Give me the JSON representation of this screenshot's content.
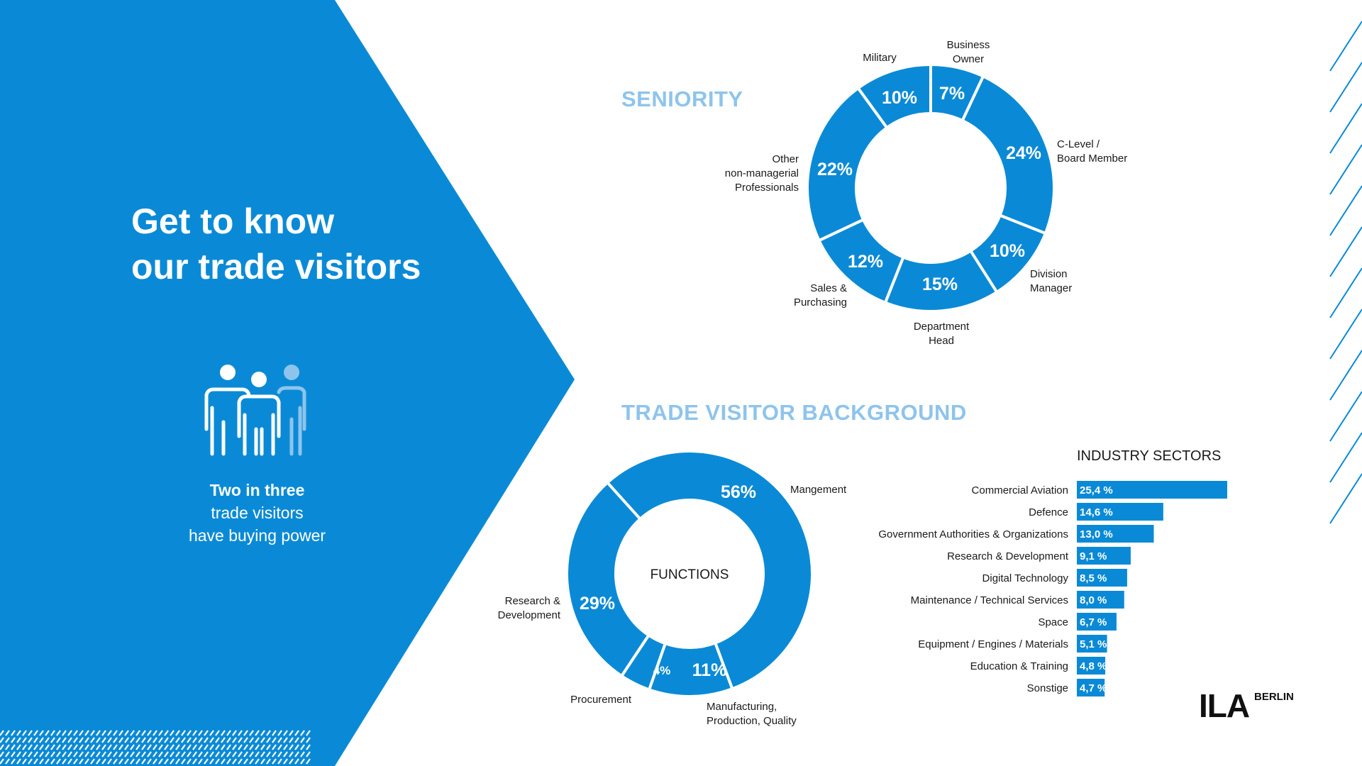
{
  "headline": {
    "line1": "Get to know",
    "line2": "our trade visitors"
  },
  "buying_power": {
    "line1": "Two in three",
    "line2": "trade visitors",
    "line3": "have buying power"
  },
  "colors": {
    "primary": "#0a8ad6",
    "light_blue": "#8ec4ec",
    "white": "#ffffff",
    "text_dark": "#1a1a1a"
  },
  "icons": {
    "people": "people-group-icon"
  },
  "logo": {
    "mark": "ILA",
    "word": "BERLIN"
  },
  "sections": {
    "seniority_title": "SENIORITY",
    "background_title": "TRADE VISITOR BACKGROUND",
    "industry_title": "INDUSTRY SECTORS"
  },
  "chart_data": [
    {
      "type": "pie",
      "title": "SENIORITY",
      "categories": [
        "Business Owner",
        "C-Level / Board Member",
        "Division Manager",
        "Department Head",
        "Sales & Purchasing",
        "Other non-managerial Professionals",
        "Military"
      ],
      "values": [
        7,
        24,
        10,
        15,
        12,
        22,
        10
      ],
      "value_labels": [
        "7%",
        "24%",
        "10%",
        "15%",
        "12%",
        "22%",
        "10%"
      ],
      "category_lines": [
        [
          "Business",
          "Owner"
        ],
        [
          "C-Level /",
          "Board Member"
        ],
        [
          "Division",
          "Manager"
        ],
        [
          "Department",
          "Head"
        ],
        [
          "Sales &",
          "Purchasing"
        ],
        [
          "Other",
          "non-managerial",
          "Professionals"
        ],
        [
          "Military"
        ]
      ]
    },
    {
      "type": "pie",
      "title": "FUNCTIONS",
      "categories": [
        "Mangement",
        "Manufacturing, Production, Quality",
        "Procurement",
        "Research & Development"
      ],
      "values": [
        56,
        11,
        4,
        29
      ],
      "value_labels": [
        "56%",
        "11%",
        "4%",
        "29%"
      ],
      "category_lines": [
        [
          "Mangement"
        ],
        [
          "Manufacturing,",
          "Production, Quality"
        ],
        [
          "Procurement"
        ],
        [
          "Research &",
          "Development"
        ]
      ]
    },
    {
      "type": "bar",
      "orientation": "horizontal",
      "title": "INDUSTRY SECTORS",
      "categories": [
        "Commercial Aviation",
        "Defence",
        "Government Authorities & Organizations",
        "Research & Development",
        "Digital Technology",
        "Maintenance /   Technical Services",
        "Space",
        "Equipment / Engines / Materials",
        "Education & Training",
        "Sonstige"
      ],
      "values": [
        25.4,
        14.6,
        13.0,
        9.1,
        8.5,
        8.0,
        6.7,
        5.1,
        4.8,
        4.7
      ],
      "value_labels": [
        "25,4 %",
        "14,6 %",
        "13,0 %",
        "9,1 %",
        "8,5 %",
        "8,0 %",
        "6,7 %",
        "5,1 %",
        "4,8 %",
        "4,7 %"
      ]
    }
  ]
}
